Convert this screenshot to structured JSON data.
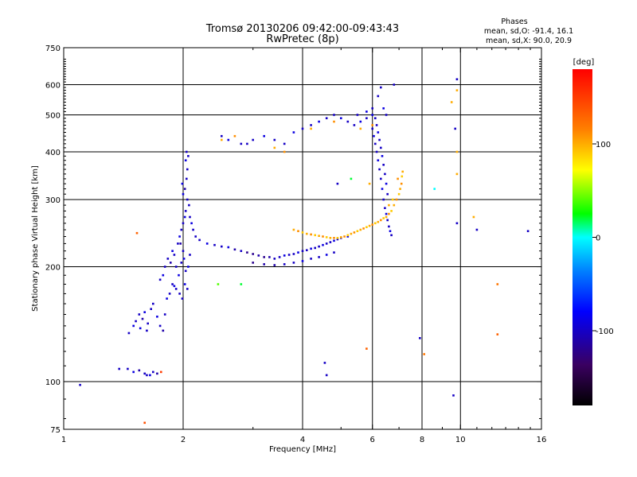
{
  "chart_data": {
    "type": "scatter",
    "title": "Tromsø 20130206 09:42:00-09:43:43",
    "subtitle": "RwPretec (8p)",
    "stats": {
      "title": "Phases",
      "line1": "mean, sd,O: -91.4, 16.1",
      "line2": "mean, sd,X:  90.0, 20.9"
    },
    "xlabel": "Frequency [MHz]",
    "ylabel": "Stationary phase Virtual Height [km]",
    "xscale": "log",
    "yscale": "log",
    "xlim": [
      1,
      16
    ],
    "ylim": [
      75,
      750
    ],
    "xticks": [
      1,
      2,
      4,
      6,
      8,
      10,
      16
    ],
    "xgrid": [
      2,
      4,
      6,
      8,
      10
    ],
    "yticks": [
      75,
      100,
      200,
      300,
      400,
      500,
      600,
      750
    ],
    "ygrid": [
      100,
      200,
      300,
      400,
      500,
      600
    ],
    "grid": true,
    "colorbar": {
      "label": "[deg]",
      "range": [
        -180,
        180
      ],
      "ticks": [
        100,
        0,
        -100
      ]
    },
    "points": [
      [
        1.1,
        98,
        -100
      ],
      [
        1.38,
        108,
        -100
      ],
      [
        1.45,
        108,
        -100
      ],
      [
        1.5,
        106,
        -90
      ],
      [
        1.55,
        107,
        -110
      ],
      [
        1.6,
        105,
        -100
      ],
      [
        1.62,
        104,
        -100
      ],
      [
        1.65,
        104,
        -90
      ],
      [
        1.68,
        106,
        -100
      ],
      [
        1.72,
        105,
        -110
      ],
      [
        1.46,
        134,
        -100
      ],
      [
        1.5,
        140,
        -90
      ],
      [
        1.52,
        144,
        -100
      ],
      [
        1.55,
        150,
        -100
      ],
      [
        1.58,
        146,
        -110
      ],
      [
        1.6,
        152,
        -90
      ],
      [
        1.63,
        142,
        -100
      ],
      [
        1.66,
        155,
        -100
      ],
      [
        1.56,
        138,
        -90
      ],
      [
        1.62,
        136,
        -100
      ],
      [
        1.68,
        160,
        -100
      ],
      [
        1.72,
        148,
        -90
      ],
      [
        1.75,
        140,
        -100
      ],
      [
        1.78,
        136,
        -110
      ],
      [
        1.8,
        150,
        -100
      ],
      [
        1.82,
        165,
        -90
      ],
      [
        1.85,
        170,
        -100
      ],
      [
        1.88,
        180,
        -100
      ],
      [
        1.9,
        178,
        -90
      ],
      [
        1.92,
        175,
        -100
      ],
      [
        1.75,
        185,
        -100
      ],
      [
        1.78,
        190,
        -90
      ],
      [
        1.8,
        200,
        -100
      ],
      [
        1.83,
        210,
        -100
      ],
      [
        1.86,
        205,
        -110
      ],
      [
        1.88,
        220,
        -90
      ],
      [
        1.9,
        215,
        -100
      ],
      [
        1.92,
        200,
        -100
      ],
      [
        1.95,
        190,
        -90
      ],
      [
        1.96,
        170,
        -100
      ],
      [
        1.94,
        230,
        -100
      ],
      [
        1.96,
        240,
        -90
      ],
      [
        1.98,
        250,
        -100
      ],
      [
        2.0,
        260,
        -100
      ],
      [
        2.02,
        270,
        -90
      ],
      [
        2.03,
        280,
        -100
      ],
      [
        2.05,
        300,
        -100
      ],
      [
        2.0,
        310,
        -90
      ],
      [
        2.02,
        320,
        -110
      ],
      [
        2.04,
        340,
        -100
      ],
      [
        2.05,
        360,
        -100
      ],
      [
        2.03,
        380,
        -90
      ],
      [
        2.06,
        390,
        -100
      ],
      [
        2.04,
        400,
        -100
      ],
      [
        1.99,
        330,
        -90
      ],
      [
        2.07,
        290,
        -100
      ],
      [
        2.08,
        270,
        -100
      ],
      [
        2.1,
        260,
        -90
      ],
      [
        2.12,
        250,
        -100
      ],
      [
        2.15,
        240,
        -100
      ],
      [
        1.97,
        230,
        -110
      ],
      [
        2.0,
        220,
        -100
      ],
      [
        2.01,
        210,
        -90
      ],
      [
        1.98,
        205,
        -100
      ],
      [
        2.03,
        195,
        -100
      ],
      [
        2.02,
        180,
        -90
      ],
      [
        2.05,
        175,
        -100
      ],
      [
        1.99,
        165,
        -100
      ],
      [
        2.06,
        200,
        -90
      ],
      [
        2.08,
        215,
        -100
      ],
      [
        2.2,
        235,
        -100
      ],
      [
        2.3,
        230,
        -90
      ],
      [
        2.4,
        228,
        -100
      ],
      [
        2.5,
        226,
        -100
      ],
      [
        2.6,
        225,
        -90
      ],
      [
        2.7,
        222,
        -110
      ],
      [
        2.8,
        220,
        -100
      ],
      [
        2.9,
        218,
        -120
      ],
      [
        3.0,
        216,
        -120
      ],
      [
        3.1,
        214,
        -110
      ],
      [
        3.2,
        212,
        -120
      ],
      [
        3.3,
        212,
        -110
      ],
      [
        3.4,
        210,
        -100
      ],
      [
        3.5,
        212,
        -100
      ],
      [
        3.6,
        214,
        -90
      ],
      [
        3.7,
        215,
        -100
      ],
      [
        3.8,
        216,
        -100
      ],
      [
        3.9,
        218,
        -90
      ],
      [
        4.0,
        220,
        -100
      ],
      [
        4.1,
        221,
        -100
      ],
      [
        4.2,
        223,
        -90
      ],
      [
        4.3,
        224,
        -100
      ],
      [
        4.4,
        226,
        -100
      ],
      [
        4.5,
        228,
        -90
      ],
      [
        4.6,
        230,
        -100
      ],
      [
        4.7,
        232,
        -100
      ],
      [
        4.8,
        234,
        -90
      ],
      [
        4.9,
        236,
        -100
      ],
      [
        5.0,
        238,
        -100
      ],
      [
        5.2,
        240,
        -90
      ],
      [
        3.0,
        205,
        -120
      ],
      [
        3.2,
        203,
        -110
      ],
      [
        3.4,
        202,
        -110
      ],
      [
        3.6,
        203,
        -100
      ],
      [
        3.8,
        205,
        -100
      ],
      [
        4.0,
        207,
        -90
      ],
      [
        4.2,
        210,
        -100
      ],
      [
        4.4,
        212,
        -100
      ],
      [
        4.6,
        215,
        -90
      ],
      [
        4.8,
        218,
        -100
      ],
      [
        3.8,
        250,
        100
      ],
      [
        3.9,
        248,
        110
      ],
      [
        4.0,
        246,
        90
      ],
      [
        4.1,
        244,
        100
      ],
      [
        4.2,
        243,
        110
      ],
      [
        4.3,
        242,
        90
      ],
      [
        4.4,
        241,
        100
      ],
      [
        4.5,
        240,
        110
      ],
      [
        4.6,
        239,
        90
      ],
      [
        4.7,
        238,
        100
      ],
      [
        4.8,
        238,
        110
      ],
      [
        4.9,
        238,
        90
      ],
      [
        5.0,
        239,
        100
      ],
      [
        5.1,
        240,
        110
      ],
      [
        5.2,
        242,
        90
      ],
      [
        5.3,
        244,
        100
      ],
      [
        5.4,
        246,
        110
      ],
      [
        5.5,
        248,
        90
      ],
      [
        5.6,
        250,
        100
      ],
      [
        5.7,
        252,
        110
      ],
      [
        5.8,
        254,
        90
      ],
      [
        5.9,
        256,
        100
      ],
      [
        6.0,
        258,
        110
      ],
      [
        6.1,
        260,
        90
      ],
      [
        6.2,
        262,
        100
      ],
      [
        6.3,
        265,
        110
      ],
      [
        6.4,
        268,
        90
      ],
      [
        6.5,
        270,
        100
      ],
      [
        6.6,
        275,
        110
      ],
      [
        6.7,
        280,
        90
      ],
      [
        6.8,
        290,
        100
      ],
      [
        6.9,
        300,
        110
      ],
      [
        7.0,
        310,
        90
      ],
      [
        7.05,
        320,
        100
      ],
      [
        7.1,
        330,
        110
      ],
      [
        7.12,
        345,
        90
      ],
      [
        7.15,
        355,
        100
      ],
      [
        6.95,
        340,
        110
      ],
      [
        6.75,
        300,
        90
      ],
      [
        6.6,
        290,
        100
      ],
      [
        6.0,
        460,
        -100
      ],
      [
        6.05,
        440,
        -90
      ],
      [
        6.1,
        420,
        -100
      ],
      [
        6.15,
        400,
        -100
      ],
      [
        6.2,
        380,
        -90
      ],
      [
        6.25,
        360,
        -100
      ],
      [
        6.3,
        340,
        -100
      ],
      [
        6.35,
        320,
        -90
      ],
      [
        6.4,
        300,
        -100
      ],
      [
        6.45,
        285,
        -100
      ],
      [
        6.5,
        275,
        -90
      ],
      [
        6.55,
        265,
        -100
      ],
      [
        6.6,
        255,
        -100
      ],
      [
        6.65,
        248,
        -90
      ],
      [
        6.7,
        242,
        -100
      ],
      [
        6.15,
        470,
        -100
      ],
      [
        6.2,
        450,
        -90
      ],
      [
        6.25,
        430,
        -100
      ],
      [
        6.3,
        410,
        -100
      ],
      [
        6.35,
        390,
        -90
      ],
      [
        6.4,
        370,
        -100
      ],
      [
        6.45,
        350,
        -100
      ],
      [
        6.5,
        330,
        -90
      ],
      [
        6.55,
        310,
        -100
      ],
      [
        6.1,
        490,
        -100
      ],
      [
        6.0,
        500,
        -90
      ],
      [
        6.2,
        560,
        -100
      ],
      [
        6.3,
        590,
        -100
      ],
      [
        6.4,
        520,
        -90
      ],
      [
        6.5,
        500,
        -100
      ],
      [
        2.5,
        440,
        -100
      ],
      [
        2.6,
        430,
        -90
      ],
      [
        2.8,
        420,
        -100
      ],
      [
        3.0,
        430,
        -100
      ],
      [
        3.2,
        440,
        -90
      ],
      [
        3.4,
        430,
        -100
      ],
      [
        3.6,
        420,
        -100
      ],
      [
        3.8,
        450,
        -90
      ],
      [
        4.0,
        460,
        -100
      ],
      [
        4.2,
        470,
        -100
      ],
      [
        4.4,
        480,
        -90
      ],
      [
        4.6,
        490,
        -100
      ],
      [
        4.8,
        500,
        -100
      ],
      [
        5.0,
        490,
        -90
      ],
      [
        5.2,
        480,
        -100
      ],
      [
        5.4,
        470,
        -100
      ],
      [
        5.6,
        480,
        -90
      ],
      [
        5.8,
        490,
        -100
      ],
      [
        2.5,
        430,
        100
      ],
      [
        2.7,
        440,
        110
      ],
      [
        3.4,
        410,
        100
      ],
      [
        3.6,
        400,
        110
      ],
      [
        4.2,
        460,
        100
      ],
      [
        4.8,
        480,
        110
      ],
      [
        5.6,
        460,
        100
      ],
      [
        6.0,
        470,
        110
      ],
      [
        5.5,
        500,
        -100
      ],
      [
        5.8,
        510,
        -90
      ],
      [
        6.0,
        520,
        -100
      ],
      [
        5.9,
        330,
        100
      ],
      [
        9.8,
        620,
        -100
      ],
      [
        9.8,
        400,
        100
      ],
      [
        9.8,
        350,
        100
      ],
      [
        9.8,
        260,
        -100
      ],
      [
        10.8,
        270,
        100
      ],
      [
        11.0,
        250,
        -100
      ],
      [
        12.4,
        180,
        120
      ],
      [
        12.4,
        133,
        130
      ],
      [
        14.8,
        248,
        -100
      ],
      [
        9.7,
        460,
        -100
      ],
      [
        9.6,
        92,
        -100
      ],
      [
        4.6,
        104,
        -100
      ],
      [
        5.8,
        122,
        130
      ],
      [
        4.55,
        112,
        -100
      ],
      [
        2.45,
        180,
        40
      ],
      [
        1.53,
        245,
        130
      ],
      [
        1.76,
        106,
        150
      ],
      [
        8.6,
        320,
        0
      ],
      [
        8.1,
        118,
        120
      ],
      [
        7.9,
        130,
        -100
      ],
      [
        9.8,
        580,
        100
      ],
      [
        9.5,
        540,
        100
      ],
      [
        4.9,
        330,
        -100
      ],
      [
        5.3,
        340,
        20
      ],
      [
        2.8,
        180,
        20
      ],
      [
        1.6,
        78,
        140
      ],
      [
        2.9,
        420,
        -100
      ],
      [
        6.8,
        600,
        -100
      ]
    ]
  }
}
